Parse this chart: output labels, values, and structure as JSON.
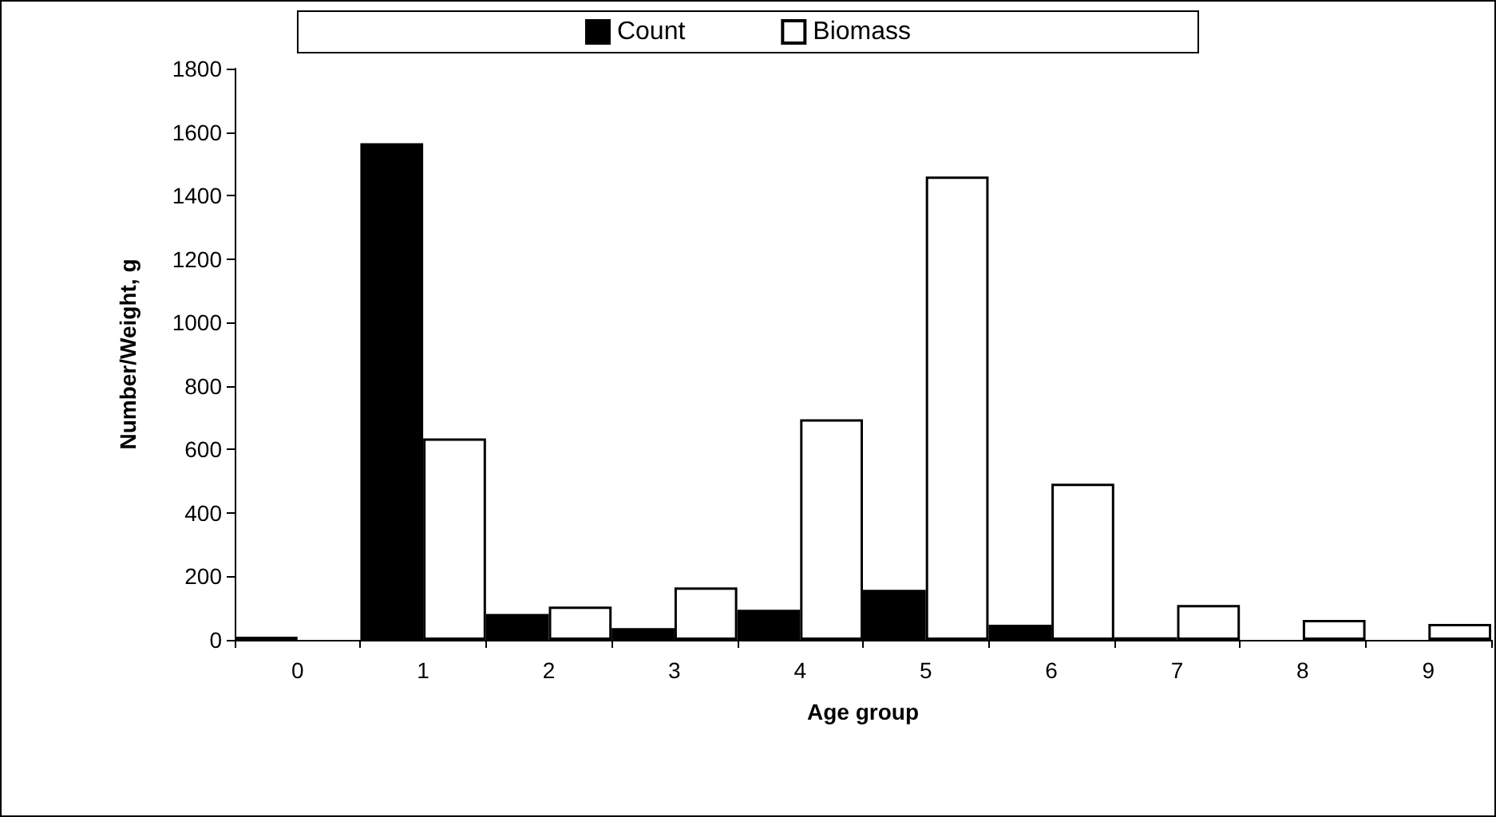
{
  "chart_data": {
    "type": "bar",
    "xlabel": "Age group",
    "ylabel": "Number/Weight, g",
    "categories": [
      "0",
      "1",
      "2",
      "3",
      "4",
      "5",
      "6",
      "7",
      "8",
      "9"
    ],
    "series": [
      {
        "name": "Count",
        "color": "#000000",
        "values": [
          10,
          1565,
          82,
          37,
          95,
          158,
          48,
          8,
          null,
          null
        ]
      },
      {
        "name": "Biomass",
        "color": "#ffffff",
        "values": [
          0,
          635,
          105,
          165,
          695,
          1460,
          492,
          110,
          63,
          50
        ]
      }
    ],
    "ylim": [
      0,
      1800
    ],
    "yticks": [
      0,
      200,
      400,
      600,
      800,
      1000,
      1200,
      1400,
      1600,
      1800
    ],
    "grid": false,
    "legend": "top"
  }
}
